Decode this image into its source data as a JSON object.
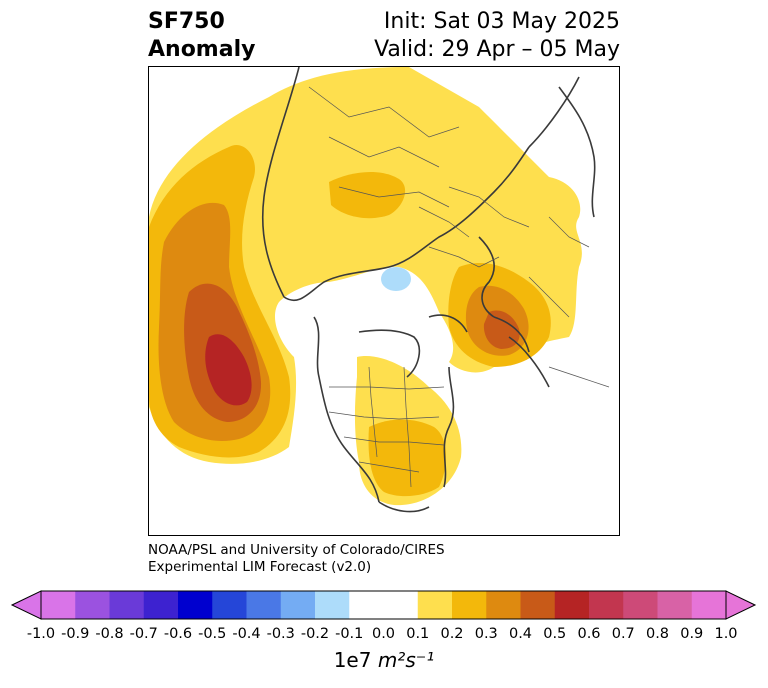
{
  "title": {
    "variable": "SF750",
    "subtitle": "Anomaly",
    "init": "Init: Sat 03 May 2025",
    "valid": "Valid: 29 Apr – 05 May"
  },
  "credit": {
    "line1": "NOAA/PSL and University of Colorado/CIRES",
    "line2": "Experimental LIM Forecast (v2.0)"
  },
  "colorbar": {
    "ticks": [
      "-1.0",
      "-0.9",
      "-0.8",
      "-0.7",
      "-0.6",
      "-0.5",
      "-0.4",
      "-0.3",
      "-0.2",
      "-0.1",
      "0.0",
      "0.1",
      "0.2",
      "0.3",
      "0.4",
      "0.5",
      "0.6",
      "0.7",
      "0.8",
      "0.9",
      "1.0"
    ],
    "colors": [
      "#d974e8",
      "#9b52e0",
      "#6a3ad8",
      "#3d22d0",
      "#0000cf",
      "#2546d8",
      "#4a78e6",
      "#74acf3",
      "#addcfa",
      "#ffffff",
      "#ffffff",
      "#fedf4e",
      "#f3b80b",
      "#de8a10",
      "#c85a18",
      "#b52424",
      "#c2364f",
      "#cd4a78",
      "#d862a6",
      "#e674d8"
    ],
    "unit_prefix": "1e7",
    "unit_expr": "m²s⁻¹"
  },
  "map_colors": {
    "c01": "#fedf4e",
    "c02": "#f3b80b",
    "c03": "#de8a10",
    "c04": "#c85a18",
    "c05": "#b52424",
    "neg01": "#addcfa",
    "coast": "#3a3a3a"
  }
}
